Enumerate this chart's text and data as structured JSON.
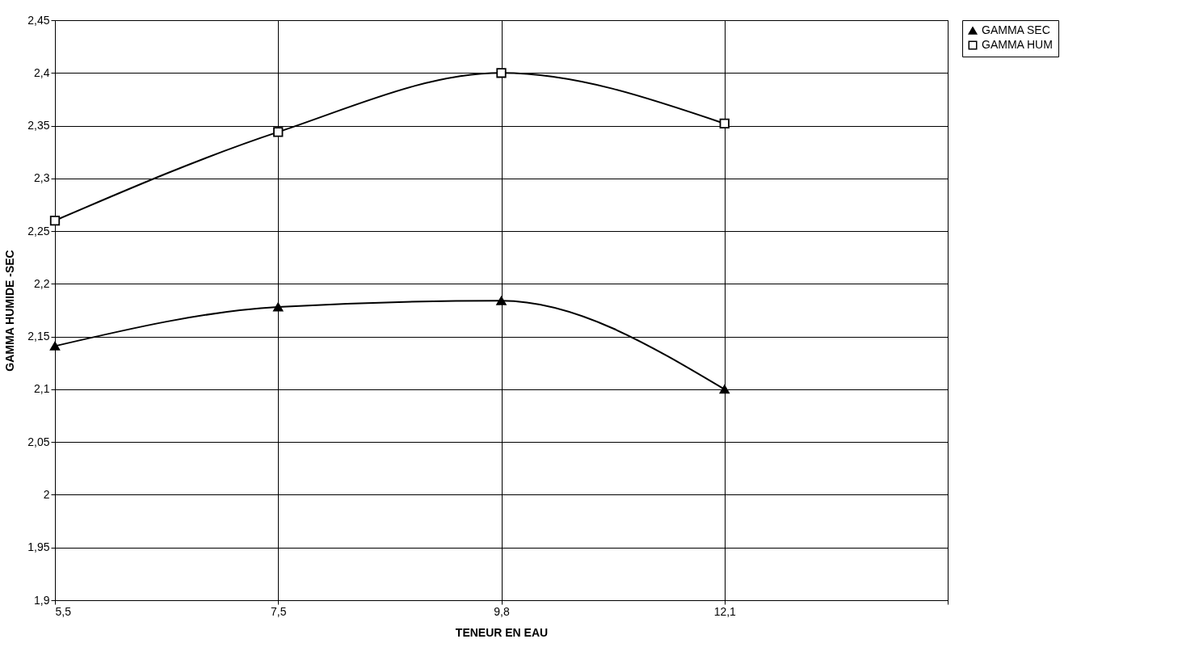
{
  "chart_data": {
    "type": "line",
    "xlabel": "TENEUR EN EAU",
    "ylabel": "GAMMA HUMIDE -SEC",
    "categories": [
      "5,5",
      "7,5",
      "9,8",
      "12,1",
      null
    ],
    "series": [
      {
        "name": "GAMMA SEC",
        "color": "#000000",
        "marker": "triangle",
        "values": [
          2.141,
          2.178,
          2.184,
          2.1,
          null
        ]
      },
      {
        "name": "GAMMA HUM",
        "color": "#000000",
        "marker": "square",
        "values": [
          2.26,
          2.344,
          2.4,
          2.352,
          null
        ]
      }
    ],
    "ylim": [
      1.9,
      2.45
    ],
    "yticks": [
      {
        "value": 1.9,
        "label": "1,9"
      },
      {
        "value": 1.95,
        "label": "1,95"
      },
      {
        "value": 2,
        "label": "2"
      },
      {
        "value": 2.05,
        "label": "2,05"
      },
      {
        "value": 2.1,
        "label": "2,1"
      },
      {
        "value": 2.15,
        "label": "2,15"
      },
      {
        "value": 2.2,
        "label": "2,2"
      },
      {
        "value": 2.25,
        "label": "2,25"
      },
      {
        "value": 2.3,
        "label": "2,3"
      },
      {
        "value": 2.35,
        "label": "2,35"
      },
      {
        "value": 2.4,
        "label": "2,4"
      },
      {
        "value": 2.45,
        "label": "2,45"
      }
    ],
    "grid": true,
    "legend": "right"
  }
}
